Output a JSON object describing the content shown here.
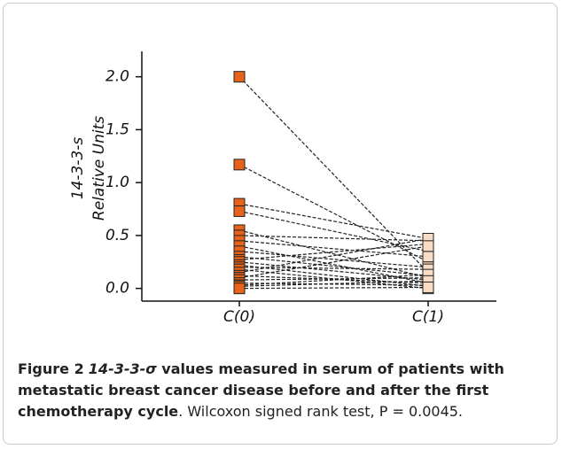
{
  "chart_data": {
    "type": "paired",
    "y_label": [
      "14-3-3-s",
      "Relative Units"
    ],
    "categories": [
      "C(0)",
      "C(1)"
    ],
    "marker_colors": [
      "#e8631a",
      "#fadcc4"
    ],
    "line_color": "#222",
    "ylim": [
      -0.12,
      2.24
    ],
    "yticks": [
      {
        "value": 0,
        "label": "0.0"
      },
      {
        "value": 0.5,
        "label": "0.5"
      },
      {
        "value": 1,
        "label": "1.0"
      },
      {
        "value": 1.5,
        "label": "1.5"
      },
      {
        "value": 2,
        "label": "2.0"
      }
    ],
    "series": [
      {
        "values": [
          2.0,
          0.15
        ]
      },
      {
        "values": [
          1.17,
          0.25
        ]
      },
      {
        "values": [
          0.8,
          0.47
        ]
      },
      {
        "values": [
          0.73,
          0.35
        ]
      },
      {
        "values": [
          0.55,
          0.1
        ]
      },
      {
        "values": [
          0.5,
          0.45
        ]
      },
      {
        "values": [
          0.45,
          0.3
        ]
      },
      {
        "values": [
          0.4,
          0.05
        ]
      },
      {
        "values": [
          0.35,
          0.2
        ]
      },
      {
        "values": [
          0.3,
          0.12
        ]
      },
      {
        "values": [
          0.27,
          0.42
        ]
      },
      {
        "values": [
          0.25,
          0.08
        ]
      },
      {
        "values": [
          0.22,
          0.02
        ]
      },
      {
        "values": [
          0.2,
          0.18
        ]
      },
      {
        "values": [
          0.18,
          0.0
        ]
      },
      {
        "values": [
          0.15,
          0.47
        ]
      },
      {
        "values": [
          0.12,
          0.05
        ]
      },
      {
        "values": [
          0.1,
          0.4
        ]
      },
      {
        "values": [
          0.08,
          0.1
        ]
      },
      {
        "values": [
          0.05,
          0.03
        ]
      },
      {
        "values": [
          0.03,
          0.13
        ]
      },
      {
        "values": [
          0.02,
          0.07
        ]
      },
      {
        "values": [
          0.0,
          0.01
        ]
      }
    ]
  },
  "caption": {
    "label": "Figure 2",
    "symbol": "14-3-3-σ",
    "bold_text": " values measured in serum of patients with metastatic breast cancer disease before and after the first chemotherapy cycle",
    "text": ". Wilcoxon signed rank test, P = 0.0045."
  }
}
